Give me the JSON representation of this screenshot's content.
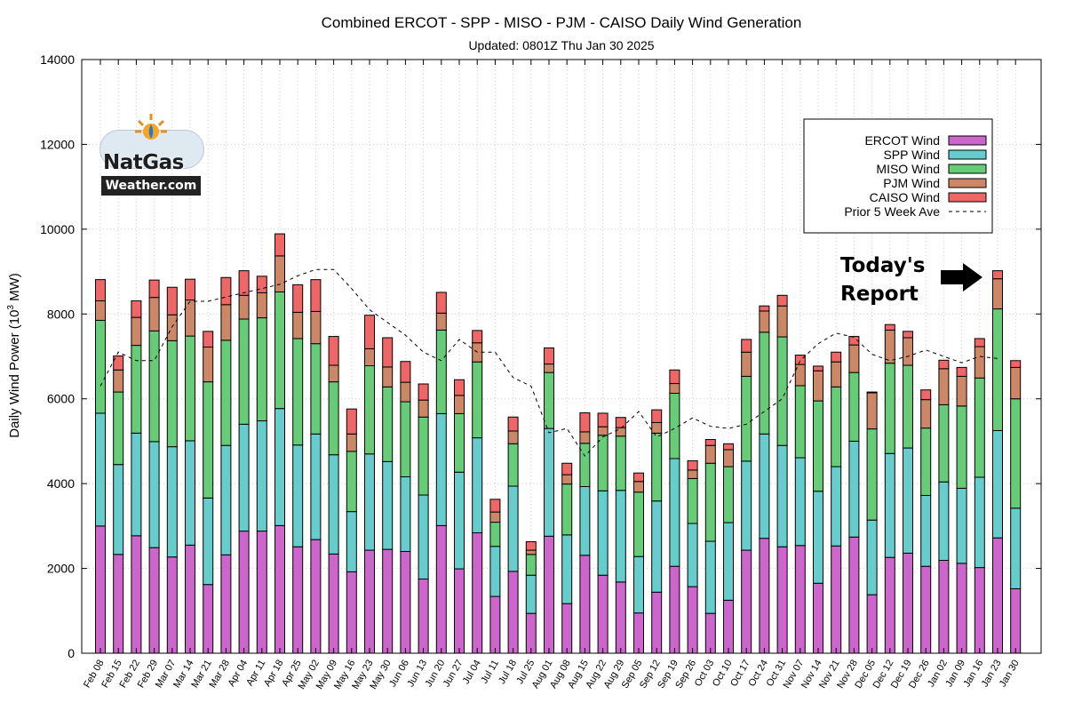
{
  "chart_data": {
    "type": "bar",
    "stacked": true,
    "title": "Combined ERCOT - SPP - MISO - PJM - CAISO Daily Wind Generation",
    "subtitle": "Updated: 0801Z Thu Jan 30 2025",
    "ylabel_prefix": "Daily Wind Power (10",
    "ylabel_exp": "3",
    "ylabel_suffix": " MW)",
    "ylim": [
      0,
      14000
    ],
    "yticks": [
      "0",
      "2000",
      "4000",
      "6000",
      "8000",
      "10000",
      "12000",
      "14000"
    ],
    "grid": true,
    "legend_position": "top-right",
    "categories": [
      "Feb 08",
      "Feb 15",
      "Feb 22",
      "Feb 29",
      "Mar 07",
      "Mar 14",
      "Mar 21",
      "Mar 28",
      "Apr 04",
      "Apr 11",
      "Apr 18",
      "Apr 25",
      "May 02",
      "May 09",
      "May 16",
      "May 23",
      "May 30",
      "Jun 06",
      "Jun 13",
      "Jun 20",
      "Jun 27",
      "Jul 04",
      "Jul 11",
      "Jul 18",
      "Jul 25",
      "Aug 01",
      "Aug 08",
      "Aug 15",
      "Aug 22",
      "Aug 29",
      "Sep 05",
      "Sep 12",
      "Sep 19",
      "Sep 26",
      "Oct 03",
      "Oct 10",
      "Oct 17",
      "Oct 24",
      "Oct 31",
      "Nov 07",
      "Nov 14",
      "Nov 21",
      "Nov 28",
      "Dec 05",
      "Dec 12",
      "Dec 19",
      "Dec 26",
      "Jan 02",
      "Jan 09",
      "Jan 16",
      "Jan 23",
      "Jan 30"
    ],
    "series": [
      {
        "name": "ERCOT Wind",
        "color": "#cc66cc",
        "values": [
          3000,
          2330,
          2770,
          2490,
          2270,
          2550,
          1620,
          2320,
          2880,
          2880,
          3010,
          2510,
          2680,
          2340,
          1920,
          2430,
          2450,
          2400,
          1750,
          3010,
          1990,
          2840,
          1340,
          1930,
          940,
          2760,
          1170,
          2310,
          1840,
          1680,
          950,
          1440,
          2050,
          1570,
          940,
          1250,
          2430,
          2710,
          2510,
          2540,
          1650,
          2530,
          2740,
          1380,
          2260,
          2360,
          2050,
          2190,
          2120,
          2020,
          2720,
          1520
        ]
      },
      {
        "name": "SPP Wind",
        "color": "#66cccc",
        "values": [
          2660,
          2120,
          2420,
          2500,
          2600,
          2460,
          2040,
          2580,
          2520,
          2600,
          2760,
          2400,
          2490,
          2340,
          1420,
          2270,
          2070,
          1760,
          1980,
          2640,
          2280,
          2240,
          1180,
          2010,
          900,
          2540,
          1620,
          1620,
          1990,
          2160,
          1330,
          2150,
          2540,
          1490,
          1700,
          1830,
          2100,
          2460,
          2390,
          2070,
          2170,
          1870,
          2260,
          1760,
          2450,
          2480,
          1670,
          1850,
          1770,
          2130,
          2530,
          1900
        ]
      },
      {
        "name": "MISO Wind",
        "color": "#66cc77",
        "values": [
          2190,
          1710,
          2070,
          2610,
          2500,
          2470,
          2740,
          2480,
          2480,
          2430,
          2750,
          2510,
          2130,
          1720,
          1420,
          2080,
          1760,
          1770,
          1840,
          1970,
          1380,
          1790,
          570,
          1000,
          490,
          1320,
          1200,
          1020,
          1310,
          1280,
          1520,
          1600,
          1540,
          1060,
          1840,
          1320,
          2000,
          2400,
          2560,
          1700,
          2130,
          1880,
          1620,
          2150,
          2130,
          1950,
          1590,
          1820,
          1940,
          2340,
          2870,
          2580
        ]
      },
      {
        "name": "PJM Wind",
        "color": "#cc8866",
        "values": [
          460,
          520,
          660,
          790,
          610,
          850,
          820,
          840,
          560,
          590,
          850,
          620,
          760,
          390,
          410,
          400,
          470,
          460,
          400,
          400,
          430,
          450,
          240,
          300,
          100,
          200,
          220,
          270,
          200,
          200,
          250,
          250,
          230,
          200,
          420,
          400,
          570,
          500,
          730,
          500,
          710,
          590,
          650,
          850,
          780,
          650,
          670,
          850,
          700,
          740,
          710,
          740
        ]
      },
      {
        "name": "CAISO Wind",
        "color": "#ee6666",
        "values": [
          500,
          330,
          390,
          410,
          650,
          490,
          370,
          640,
          580,
          390,
          520,
          650,
          750,
          680,
          590,
          790,
          690,
          490,
          380,
          490,
          370,
          290,
          300,
          330,
          200,
          380,
          270,
          450,
          320,
          240,
          200,
          300,
          320,
          220,
          140,
          140,
          300,
          120,
          250,
          220,
          110,
          230,
          200,
          20,
          130,
          150,
          230,
          200,
          210,
          190,
          190,
          160
        ]
      }
    ],
    "line": {
      "name": "Prior 5 Week Ave",
      "color": "#000000",
      "dashed": true,
      "values": [
        6300,
        7100,
        6900,
        6900,
        7700,
        8300,
        8300,
        8400,
        8500,
        8600,
        8700,
        8900,
        9050,
        9050,
        8600,
        8100,
        7800,
        7500,
        7100,
        6900,
        7400,
        7100,
        7100,
        6500,
        6300,
        5200,
        5300,
        4650,
        5100,
        5300,
        5700,
        5100,
        5300,
        5550,
        5350,
        5300,
        5400,
        5700,
        6000,
        6900,
        7300,
        7550,
        7450,
        7050,
        6900,
        7000,
        7150,
        7000,
        6850,
        7000,
        6950,
        null
      ]
    }
  },
  "annotation": {
    "line1": "Today's",
    "line2": "Report"
  },
  "logo": {
    "brand": "NatGas",
    "domain": "Weather.com"
  }
}
